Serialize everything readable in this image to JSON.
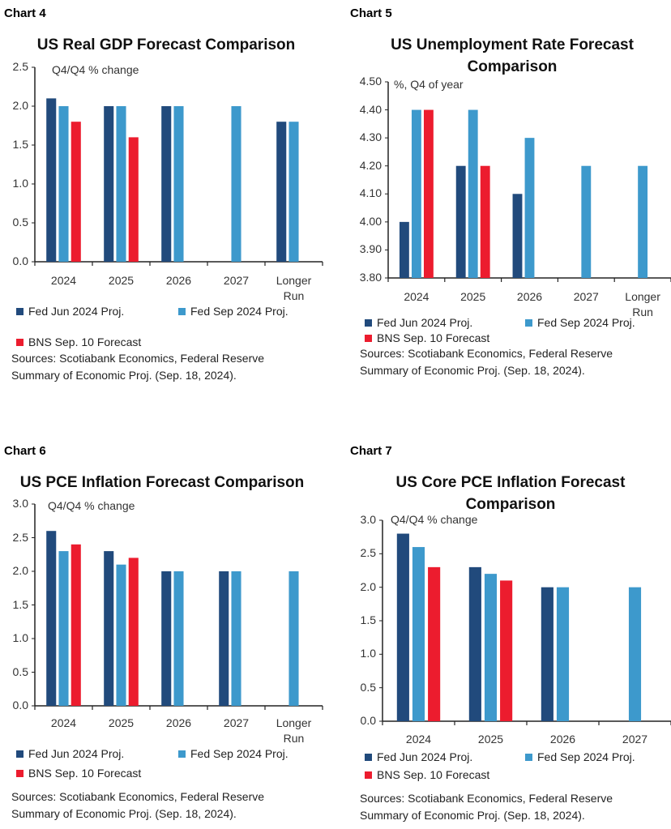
{
  "colors": {
    "fed_jun": "#214a7c",
    "fed_sep": "#3d99cc",
    "bns": "#ec1c2e",
    "axis": "#222222"
  },
  "chart_data": [
    {
      "chart_label": "Chart 4",
      "type": "bar",
      "title": "US Real GDP Forecast Comparison",
      "unit_label": "Q4/Q4 % change",
      "categories": [
        "2024",
        "2025",
        "2026",
        "2027",
        "Longer Run"
      ],
      "yticks": [
        "0.0",
        "0.5",
        "1.0",
        "1.5",
        "2.0",
        "2.5"
      ],
      "ylim": [
        0,
        2.5
      ],
      "series": [
        {
          "name": "Fed Jun 2024 Proj.",
          "values": [
            2.1,
            2.0,
            2.0,
            null,
            1.8
          ]
        },
        {
          "name": "Fed Sep 2024 Proj.",
          "values": [
            2.0,
            2.0,
            2.0,
            2.0,
            1.8
          ]
        },
        {
          "name": "BNS Sep. 10 Forecast",
          "values": [
            1.8,
            1.6,
            null,
            null,
            null
          ]
        }
      ],
      "sources": [
        "Sources: Scotiabank Economics, Federal Reserve",
        "Summary of Economic Proj. (Sep. 18, 2024)."
      ]
    },
    {
      "chart_label": "Chart 5",
      "type": "bar",
      "title": "US Unemployment Rate Forecast Comparison",
      "unit_label": "%, Q4 of year",
      "categories": [
        "2024",
        "2025",
        "2026",
        "2027",
        "Longer Run"
      ],
      "yticks": [
        "3.80",
        "3.90",
        "4.00",
        "4.10",
        "4.20",
        "4.30",
        "4.40",
        "4.50"
      ],
      "ylim": [
        3.8,
        4.5
      ],
      "series": [
        {
          "name": "Fed Jun 2024 Proj.",
          "values": [
            4.0,
            4.2,
            4.1,
            null,
            null
          ]
        },
        {
          "name": "Fed Sep 2024 Proj.",
          "values": [
            4.4,
            4.4,
            4.3,
            4.2,
            4.2
          ]
        },
        {
          "name": "BNS Sep. 10 Forecast",
          "values": [
            4.4,
            4.2,
            null,
            null,
            null
          ]
        }
      ],
      "sources": [
        "Sources: Scotiabank Economics, Federal Reserve",
        "Summary of Economic Proj. (Sep. 18, 2024)."
      ]
    },
    {
      "chart_label": "Chart 6",
      "type": "bar",
      "title": "US PCE Inflation Forecast Comparison",
      "unit_label": "Q4/Q4 % change",
      "categories": [
        "2024",
        "2025",
        "2026",
        "2027",
        "Longer Run"
      ],
      "yticks": [
        "0.0",
        "0.5",
        "1.0",
        "1.5",
        "2.0",
        "2.5",
        "3.0"
      ],
      "ylim": [
        0,
        3.0
      ],
      "series": [
        {
          "name": "Fed Jun 2024 Proj.",
          "values": [
            2.6,
            2.3,
            2.0,
            2.0,
            null
          ]
        },
        {
          "name": "Fed Sep 2024 Proj.",
          "values": [
            2.3,
            2.1,
            2.0,
            2.0,
            2.0
          ]
        },
        {
          "name": "BNS Sep. 10 Forecast",
          "values": [
            2.4,
            2.2,
            null,
            null,
            null
          ]
        }
      ],
      "sources": [
        "Sources: Scotiabank Economics, Federal Reserve",
        "Summary of Economic Proj. (Sep. 18, 2024)."
      ]
    },
    {
      "chart_label": "Chart 7",
      "type": "bar",
      "title": "US Core PCE Inflation Forecast Comparison",
      "unit_label": "Q4/Q4 % change",
      "categories": [
        "2024",
        "2025",
        "2026",
        "2027"
      ],
      "yticks": [
        "0.0",
        "0.5",
        "1.0",
        "1.5",
        "2.0",
        "2.5",
        "3.0"
      ],
      "ylim": [
        0,
        3.0
      ],
      "series": [
        {
          "name": "Fed Jun 2024 Proj.",
          "values": [
            2.8,
            2.3,
            2.0,
            null
          ]
        },
        {
          "name": "Fed Sep 2024 Proj.",
          "values": [
            2.6,
            2.2,
            2.0,
            2.0
          ]
        },
        {
          "name": "BNS Sep. 10 Forecast",
          "values": [
            2.3,
            2.1,
            null,
            null
          ]
        }
      ],
      "sources": [
        "Sources: Scotiabank Economics, Federal Reserve",
        "Summary of Economic Proj. (Sep. 18, 2024)."
      ]
    }
  ]
}
